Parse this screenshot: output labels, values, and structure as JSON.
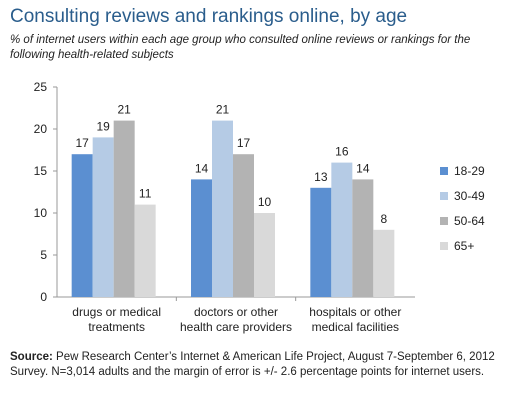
{
  "title": "Consulting reviews and rankings online, by age",
  "subtitle": "% of internet users within each age group who consulted online reviews or rankings for the following health-related subjects",
  "source": {
    "label": "Source:",
    "text": "Pew Research Center’s Internet & American Life Project, August 7-September 6, 2012 Survey. N=3,014 adults and the margin of error is +/- 2.6 percentage points for internet users."
  },
  "colors": {
    "18-29": "#5b8fd1",
    "30-49": "#b5cbe5",
    "50-64": "#b3b3b3",
    "65+": "#d9d9d9"
  },
  "chart_data": {
    "type": "bar",
    "categories": [
      [
        "drugs or medical",
        "treatments"
      ],
      [
        "doctors or other",
        "health care providers"
      ],
      [
        "hospitals or other",
        "medical facilities"
      ]
    ],
    "series": [
      {
        "name": "18-29",
        "values": [
          17,
          14,
          13
        ]
      },
      {
        "name": "30-49",
        "values": [
          19,
          21,
          16
        ]
      },
      {
        "name": "50-64",
        "values": [
          21,
          17,
          14
        ]
      },
      {
        "name": "65+",
        "values": [
          11,
          10,
          8
        ]
      }
    ],
    "ylim": [
      0,
      25
    ],
    "yticks": [
      0,
      5,
      10,
      15,
      20,
      25
    ],
    "grid": false,
    "legend": "right",
    "data_labels": true
  }
}
